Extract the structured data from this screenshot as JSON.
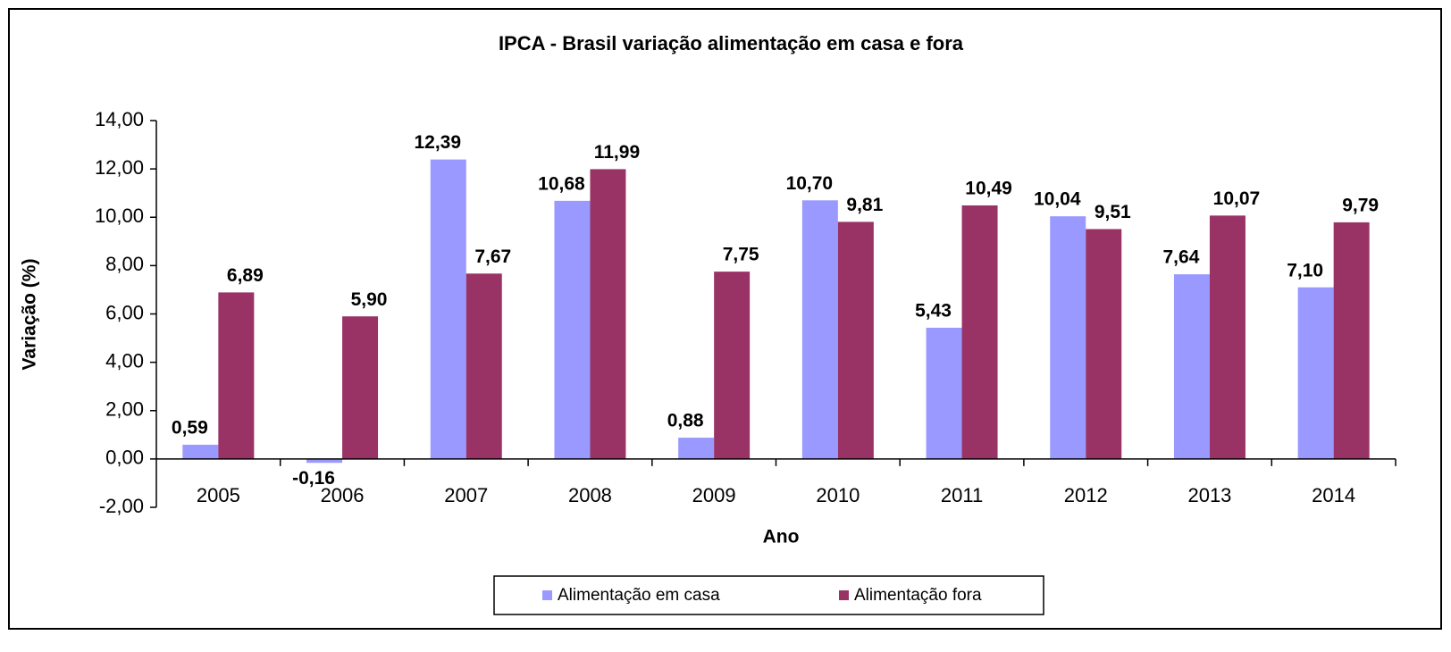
{
  "chart_data": {
    "type": "bar",
    "title": "IPCA - Brasil variação alimentação em casa e fora",
    "x_label": "Ano",
    "y_label": "Variação (%)",
    "categories": [
      "2005",
      "2006",
      "2007",
      "2008",
      "2009",
      "2010",
      "2011",
      "2012",
      "2013",
      "2014"
    ],
    "series": [
      {
        "name": "Alimentação em casa",
        "color": "#9999ff",
        "values": [
          0.59,
          -0.16,
          12.39,
          10.68,
          0.88,
          10.7,
          5.43,
          10.04,
          7.64,
          7.1
        ],
        "value_labels": [
          "0,59",
          "-0,16",
          "12,39",
          "10,68",
          "0,88",
          "10,70",
          "5,43",
          "10,04",
          "7,64",
          "7,10"
        ]
      },
      {
        "name": "Alimentação fora",
        "color": "#993366",
        "values": [
          6.89,
          5.9,
          7.67,
          11.99,
          7.75,
          9.81,
          10.49,
          9.51,
          10.07,
          9.79
        ],
        "value_labels": [
          "6,89",
          "5,90",
          "7,67",
          "11,99",
          "7,75",
          "9,81",
          "10,49",
          "9,51",
          "10,07",
          "9,79"
        ]
      }
    ],
    "ylim": [
      -2,
      14
    ],
    "yticks": [
      {
        "value": -2,
        "label": "-2,00"
      },
      {
        "value": 0,
        "label": "0,00"
      },
      {
        "value": 2,
        "label": "2,00"
      },
      {
        "value": 4,
        "label": "4,00"
      },
      {
        "value": 6,
        "label": "6,00"
      },
      {
        "value": 8,
        "label": "8,00"
      },
      {
        "value": 10,
        "label": "10,00"
      },
      {
        "value": 12,
        "label": "12,00"
      },
      {
        "value": 14,
        "label": "14,00"
      }
    ],
    "grid": false,
    "legend": "bottom"
  }
}
